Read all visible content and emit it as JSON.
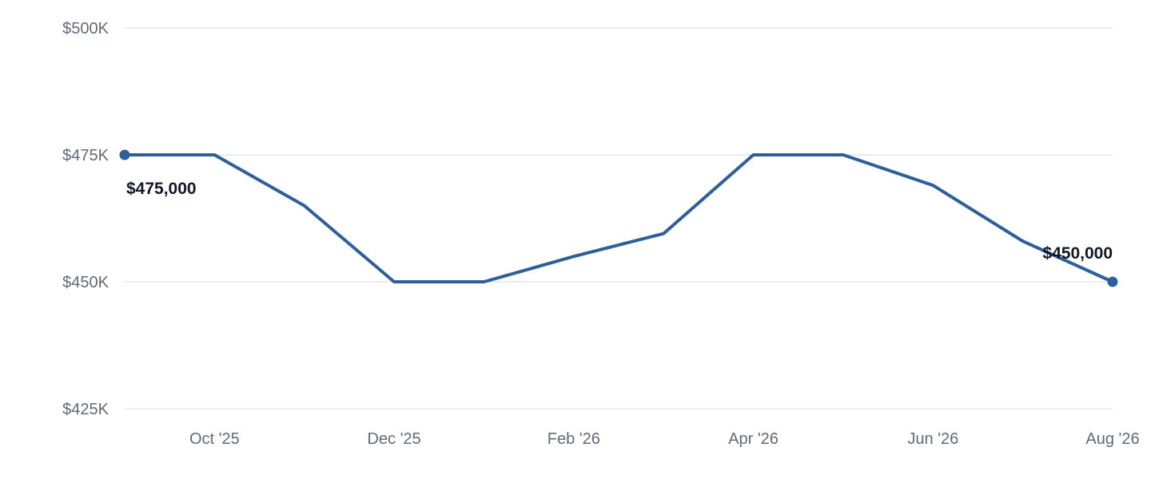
{
  "colors": {
    "line": "#2d5f9a",
    "grid": "#e3e7ec",
    "tick_text": "#5f6b78",
    "label_text": "#111a24"
  },
  "chart_data": {
    "type": "line",
    "title": "",
    "xlabel": "",
    "ylabel": "",
    "ylim": [
      425000,
      500000
    ],
    "y_ticks": [
      {
        "value": 500000,
        "label": "$500K"
      },
      {
        "value": 475000,
        "label": "$475K"
      },
      {
        "value": 450000,
        "label": "$450K"
      },
      {
        "value": 425000,
        "label": "$425K"
      }
    ],
    "x": [
      "2025-09",
      "2025-10",
      "2025-11",
      "2025-12",
      "2026-01",
      "2026-02",
      "2026-03",
      "2026-04",
      "2026-05",
      "2026-06",
      "2026-07",
      "2026-08"
    ],
    "x_ticks": [
      {
        "x": "2025-10",
        "label": "Oct '25"
      },
      {
        "x": "2025-12",
        "label": "Dec '25"
      },
      {
        "x": "2026-02",
        "label": "Feb '26"
      },
      {
        "x": "2026-04",
        "label": "Apr '26"
      },
      {
        "x": "2026-06",
        "label": "Jun '26"
      },
      {
        "x": "2026-08",
        "label": "Aug '26"
      }
    ],
    "series": [
      {
        "values": [
          475000,
          475000,
          465000,
          450000,
          450000,
          455000,
          459500,
          475000,
          475000,
          469000,
          458000,
          450000
        ]
      }
    ],
    "data_labels": [
      {
        "x": "2025-09",
        "text": "$475,000"
      },
      {
        "x": "2026-08",
        "text": "$450,000"
      }
    ],
    "grid": true,
    "legend": "none"
  }
}
